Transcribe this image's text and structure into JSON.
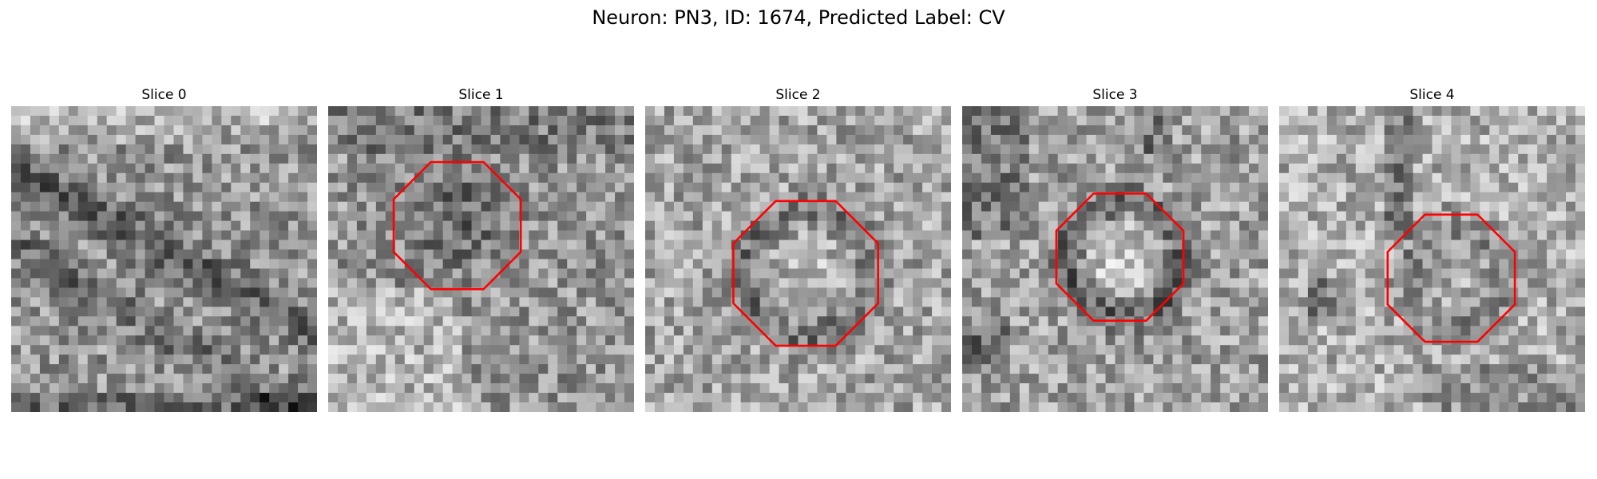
{
  "figure": {
    "title": "Neuron: PN3, ID: 1674, Predicted Label: CV"
  },
  "colors": {
    "background": "#ffffff",
    "marker": "#ff0000"
  },
  "slices": [
    {
      "title": "Slice 0",
      "has_marker": false
    },
    {
      "title": "Slice 1",
      "has_marker": true
    },
    {
      "title": "Slice 2",
      "has_marker": true
    },
    {
      "title": "Slice 3",
      "has_marker": true
    },
    {
      "title": "Slice 4",
      "has_marker": true
    }
  ]
}
